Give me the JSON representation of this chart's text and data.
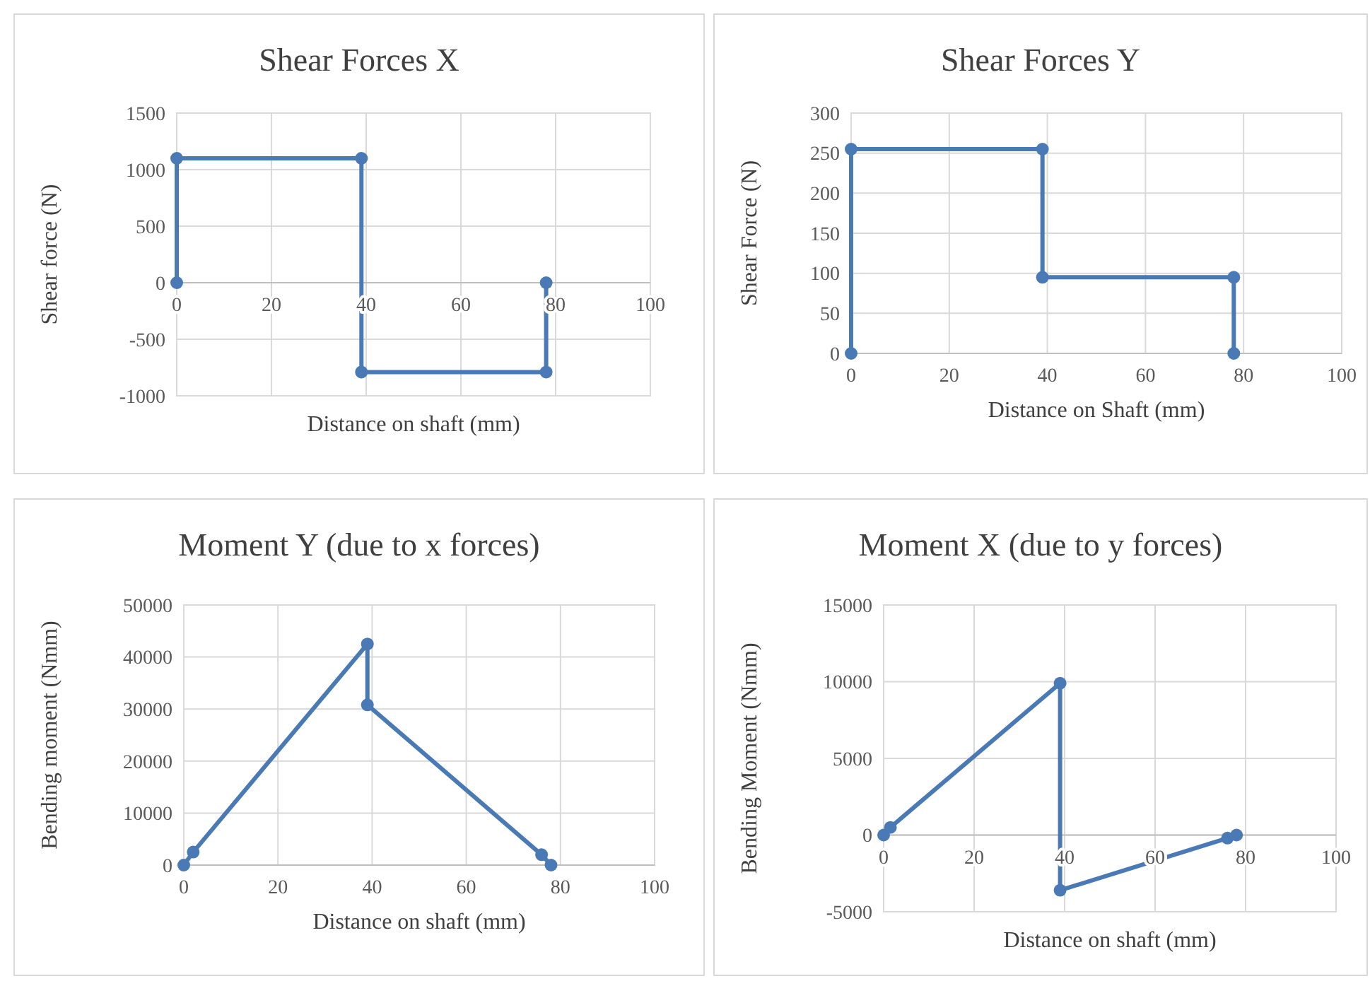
{
  "chart_data": [
    {
      "type": "line",
      "title": "Shear Forces X",
      "xlabel": "Distance on shaft (mm)",
      "ylabel": "Shear force (N)",
      "x": [
        0,
        0,
        39,
        39,
        78,
        78
      ],
      "series": [
        {
          "color": "#4a7ab5",
          "values": [
            0,
            1100,
            1100,
            -790,
            -790,
            0
          ]
        }
      ],
      "xlim": [
        0,
        100
      ],
      "xticks": [
        0,
        20,
        40,
        60,
        80,
        100
      ],
      "ylim": [
        -1000,
        1500
      ],
      "yticks": [
        -1000,
        -500,
        0,
        500,
        1000,
        1500
      ],
      "grid": true,
      "marker": "circle"
    },
    {
      "type": "line",
      "title": "Shear Forces Y",
      "xlabel": "Distance on Shaft (mm)",
      "ylabel": "Shear Force (N)",
      "x": [
        0,
        0,
        39,
        39,
        78,
        78
      ],
      "series": [
        {
          "color": "#4a7ab5",
          "values": [
            0,
            255,
            255,
            95,
            95,
            0
          ]
        }
      ],
      "xlim": [
        0,
        100
      ],
      "xticks": [
        0,
        20,
        40,
        60,
        80,
        100
      ],
      "ylim": [
        0,
        300
      ],
      "yticks": [
        0,
        50,
        100,
        150,
        200,
        250,
        300
      ],
      "grid": true,
      "marker": "circle"
    },
    {
      "type": "line",
      "title": "Moment Y (due to x forces)",
      "xlabel": "Distance on shaft (mm)",
      "ylabel": "Bending moment (Nmm)",
      "x": [
        0,
        2,
        39,
        39,
        76,
        78
      ],
      "series": [
        {
          "color": "#4a7ab5",
          "values": [
            0,
            2500,
            42500,
            30800,
            2000,
            0
          ]
        }
      ],
      "xlim": [
        0,
        100
      ],
      "xticks": [
        0,
        20,
        40,
        60,
        80,
        100
      ],
      "ylim": [
        0,
        50000
      ],
      "yticks": [
        0,
        10000,
        20000,
        30000,
        40000,
        50000
      ],
      "grid": true,
      "marker": "circle"
    },
    {
      "type": "line",
      "title": "Moment X (due to y forces)",
      "xlabel": "Distance on shaft (mm)",
      "ylabel": "Bending Moment (Nmm)",
      "x": [
        0,
        1.5,
        39,
        39,
        76,
        78
      ],
      "series": [
        {
          "color": "#4a7ab5",
          "values": [
            0,
            500,
            9900,
            -3600,
            -200,
            0
          ]
        }
      ],
      "xlim": [
        0,
        100
      ],
      "xticks": [
        0,
        20,
        40,
        60,
        80,
        100
      ],
      "ylim": [
        -5000,
        15000
      ],
      "yticks": [
        -5000,
        0,
        5000,
        10000,
        15000
      ],
      "grid": true,
      "marker": "circle"
    }
  ]
}
